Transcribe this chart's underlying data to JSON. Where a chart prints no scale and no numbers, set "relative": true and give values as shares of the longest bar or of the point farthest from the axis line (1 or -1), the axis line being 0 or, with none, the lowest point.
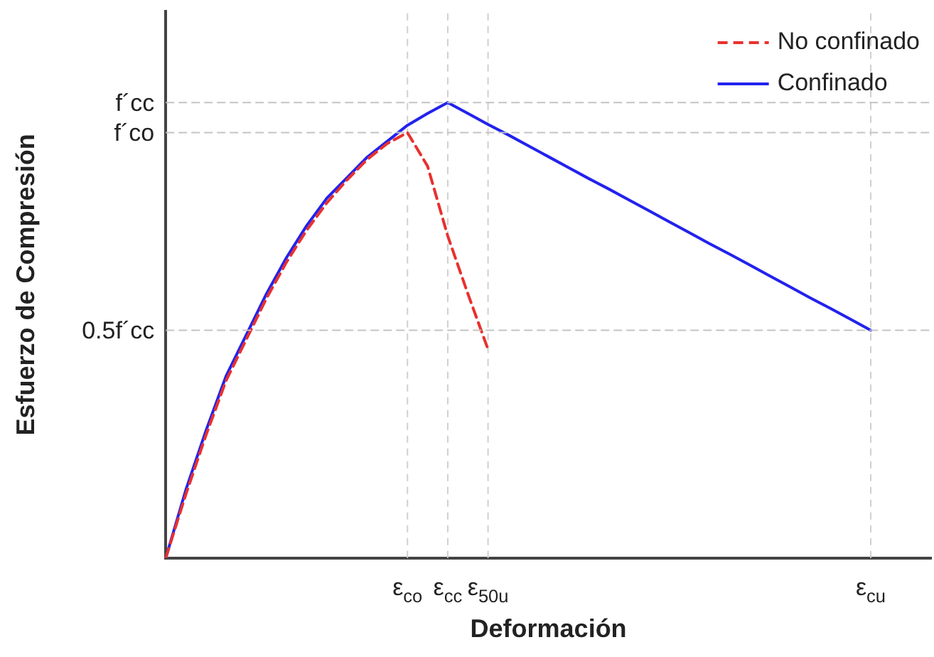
{
  "chart_data": {
    "type": "line",
    "xlabel": "Deformación",
    "ylabel": "Esfuerzo de Compresión",
    "relative": true,
    "categories": [
      null,
      null,
      null,
      null,
      null,
      null,
      null,
      null,
      null,
      null,
      null,
      null,
      "ε$_{co}$",
      null,
      "ε$_{cc}$",
      null,
      "ε$_{50u}$",
      null,
      null,
      null,
      null,
      null,
      null,
      null,
      null,
      null,
      null,
      null,
      null,
      null,
      null,
      null,
      null,
      null,
      null,
      "ε$_{cu}$",
      null,
      null,
      null
    ],
    "series": [
      {
        "name": "No confinado",
        "color": "#e8312f",
        "line_style": "dashed",
        "values": [
          0,
          0.14,
          0.27,
          0.39,
          0.48,
          0.57,
          0.65,
          0.72,
          0.78,
          0.83,
          0.875,
          0.91,
          0.934,
          0.86,
          0.707,
          0.58,
          0.458,
          null,
          null,
          null,
          null,
          null,
          null,
          null,
          null,
          null,
          null,
          null,
          null,
          null,
          null,
          null,
          null,
          null,
          null,
          null,
          null,
          null,
          null
        ]
      },
      {
        "name": "Confinado",
        "color": "#2222ee",
        "line_style": "solid",
        "values": [
          0,
          0.15,
          0.28,
          0.4,
          0.49,
          0.58,
          0.66,
          0.73,
          0.79,
          0.835,
          0.88,
          0.915,
          0.95,
          0.976,
          1,
          0.976,
          0.952,
          0.929,
          0.905,
          0.881,
          0.857,
          0.833,
          0.81,
          0.786,
          0.762,
          0.738,
          0.714,
          0.69,
          0.667,
          0.643,
          0.619,
          0.595,
          0.571,
          0.548,
          0.524,
          0.5,
          null,
          null,
          null
        ]
      }
    ],
    "ref_lines": [
      {
        "axis": "y",
        "value": 0.5,
        "label": "0.5f´cc"
      },
      {
        "axis": "y",
        "value": 0.934,
        "label": "f´co"
      },
      {
        "axis": "y",
        "value": 1,
        "label": "f´cc"
      }
    ],
    "grid": "x",
    "legend": "top right",
    "marker": "none"
  }
}
